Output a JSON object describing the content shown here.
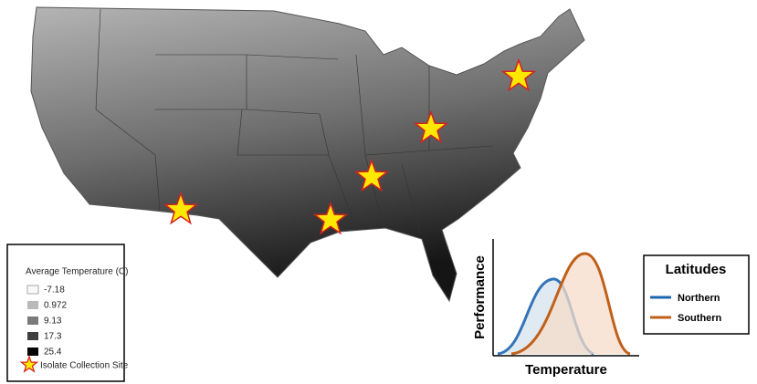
{
  "legend": {
    "title": "Average Temperature (C)",
    "items": [
      "-7.18",
      "0.972",
      "9.13",
      "17.3",
      "25.4"
    ],
    "site": "Isolate Collection Site"
  },
  "inset": {
    "y_label": "Performance",
    "x_label": "Temperature",
    "legend_title": "Latitudes",
    "series": [
      "Northern",
      "Southern"
    ]
  }
}
